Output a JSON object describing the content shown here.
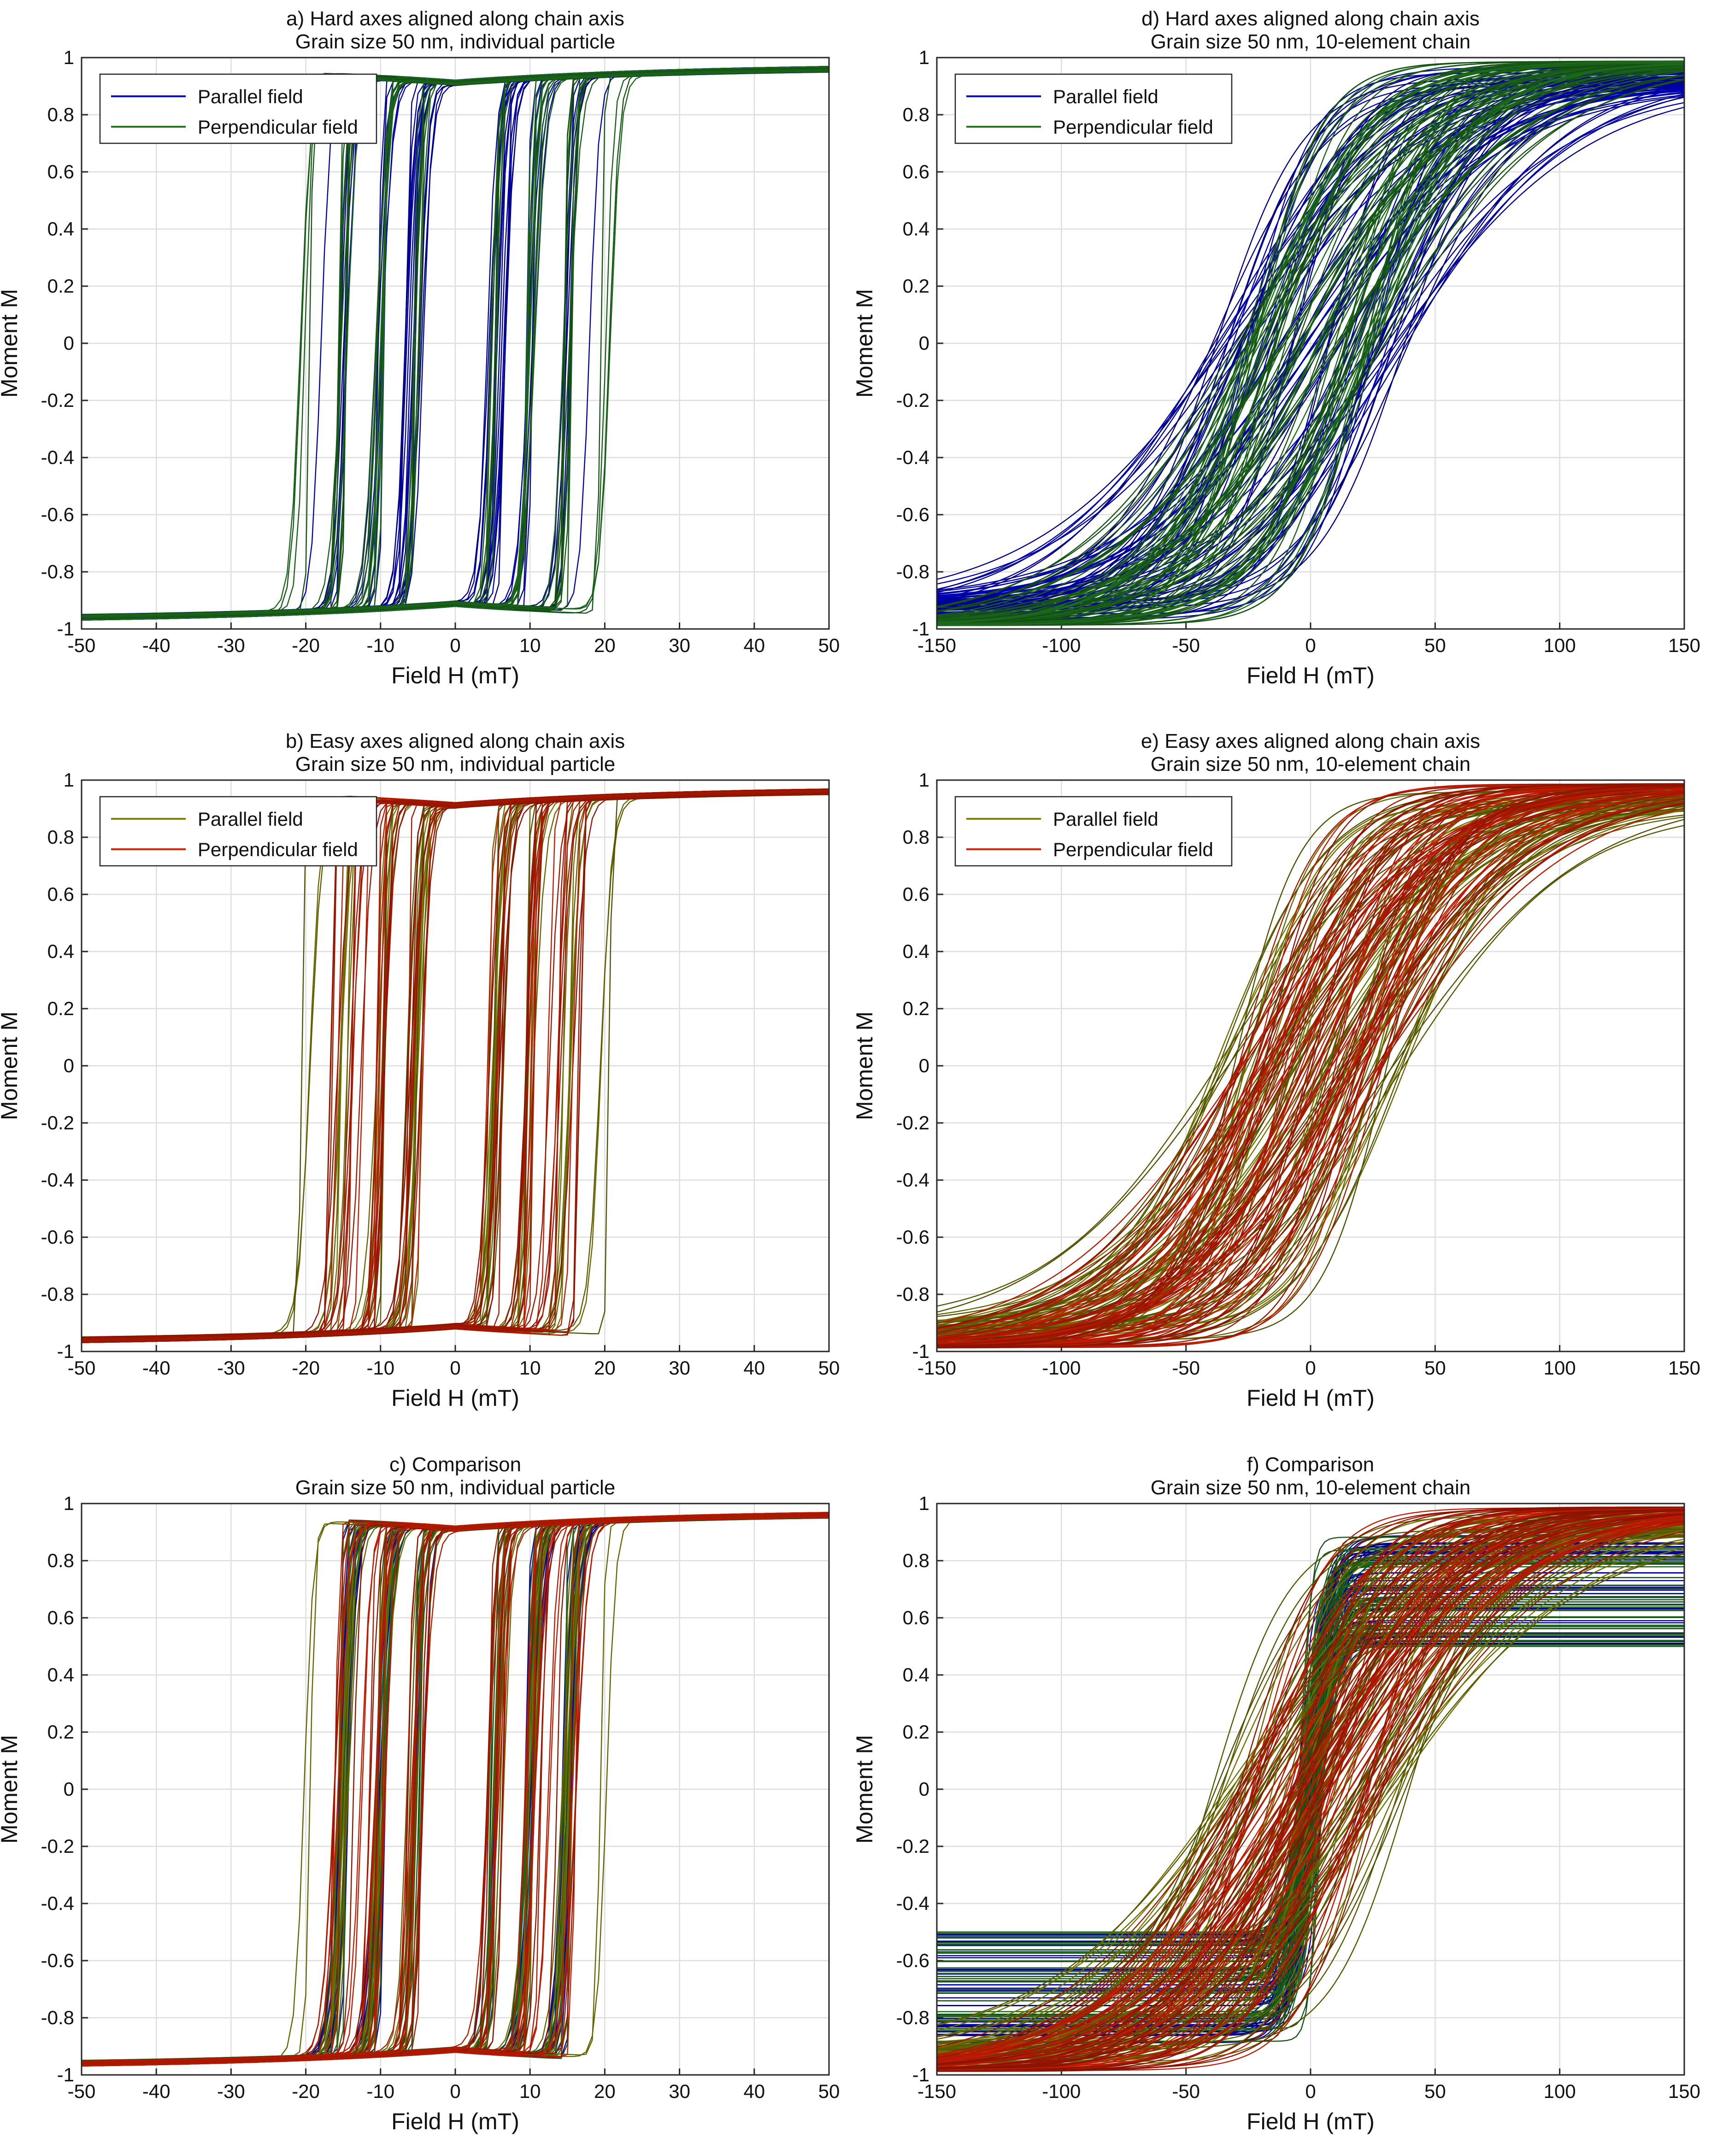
{
  "figure": {
    "panels": [
      {
        "id": "a",
        "title_line1": "a) Hard axes aligned along chain axis",
        "title_line2": "Grain size 50 nm, individual particle",
        "xlabel": "Field H (mT)",
        "ylabel": "Moment M",
        "legend": [
          {
            "label": "Parallel field",
            "color": "#0000cc"
          },
          {
            "label": "Perpendicular field",
            "color": "#1f7a1f"
          }
        ]
      },
      {
        "id": "b",
        "title_line1": "b) Easy axes aligned along chain axis",
        "title_line2": "Grain size 50 nm, individual particle",
        "xlabel": "Field H (mT)",
        "ylabel": "Moment M",
        "legend": [
          {
            "label": "Parallel field",
            "color": "#808000"
          },
          {
            "label": "Perpendicular field",
            "color": "#e02000"
          }
        ]
      },
      {
        "id": "c",
        "title_line1": "c) Comparison",
        "title_line2": "Grain size 50 nm, individual particle",
        "xlabel": "Field H (mT)",
        "ylabel": "Moment M",
        "legend": []
      },
      {
        "id": "d",
        "title_line1": "d) Hard axes aligned along chain axis",
        "title_line2": "Grain size 50 nm, 10-element chain",
        "xlabel": "Field H (mT)",
        "ylabel": "Moment M",
        "legend": [
          {
            "label": "Parallel field",
            "color": "#0000cc"
          },
          {
            "label": "Perpendicular field",
            "color": "#1f7a1f"
          }
        ]
      },
      {
        "id": "e",
        "title_line1": "e) Easy axes aligned along chain axis",
        "title_line2": "Grain size 50 nm, 10-element chain",
        "xlabel": "Field H (mT)",
        "ylabel": "Moment M",
        "legend": [
          {
            "label": "Parallel field",
            "color": "#808000"
          },
          {
            "label": "Perpendicular field",
            "color": "#e02000"
          }
        ]
      },
      {
        "id": "f",
        "title_line1": "f) Comparison",
        "title_line2": "Grain size 50 nm, 10-element chain",
        "xlabel": "Field H (mT)",
        "ylabel": "Moment M",
        "legend": []
      }
    ]
  },
  "chart_data": [
    {
      "id": "a",
      "type": "line",
      "title": "a) Hard axes aligned along chain axis / Grain size 50 nm, individual particle",
      "xlabel": "Field H (mT)",
      "ylabel": "Moment M",
      "xlim": [
        -50,
        50
      ],
      "ylim": [
        -1,
        1
      ],
      "xticks": [
        "-50",
        "-40",
        "-30",
        "-20",
        "-10",
        "0",
        "10",
        "20",
        "30",
        "40",
        "50"
      ],
      "yticks": [
        "-1",
        "-0.8",
        "-0.6",
        "-0.4",
        "-0.2",
        "0",
        "0.2",
        "0.4",
        "0.6",
        "0.8",
        "1"
      ],
      "grid": true,
      "legend_position": "top-left",
      "series": [
        {
          "name": "Parallel field",
          "color": "#0000cc",
          "style": "hysteresis",
          "coercive_fields_mT": [
            -18,
            -15,
            -10,
            -6,
            5,
            10,
            15
          ],
          "saturation_M": 0.98
        },
        {
          "name": "Perpendicular field",
          "color": "#1f7a1f",
          "style": "hysteresis",
          "coercive_fields_mT": [
            -20,
            -15,
            -10,
            -5,
            5,
            10,
            15
          ],
          "saturation_M": 0.98
        }
      ]
    },
    {
      "id": "b",
      "type": "line",
      "title": "b) Easy axes aligned along chain axis / Grain size 50 nm, individual particle",
      "xlabel": "Field H (mT)",
      "ylabel": "Moment M",
      "xlim": [
        -50,
        50
      ],
      "ylim": [
        -1,
        1
      ],
      "xticks": [
        "-50",
        "-40",
        "-30",
        "-20",
        "-10",
        "0",
        "10",
        "20",
        "30",
        "40",
        "50"
      ],
      "yticks": [
        "-1",
        "-0.8",
        "-0.6",
        "-0.4",
        "-0.2",
        "0",
        "0.2",
        "0.4",
        "0.6",
        "0.8",
        "1"
      ],
      "grid": true,
      "legend_position": "top-left",
      "series": [
        {
          "name": "Parallel field",
          "color": "#808000",
          "style": "hysteresis",
          "coercive_fields_mT": [
            -20,
            -15,
            -10,
            -6,
            5,
            10,
            15
          ],
          "saturation_M": 0.98
        },
        {
          "name": "Perpendicular field",
          "color": "#e02000",
          "style": "hysteresis",
          "coercive_fields_mT": [
            -16,
            -14,
            -10,
            -6,
            5,
            10,
            12
          ],
          "saturation_M": 0.98
        }
      ]
    },
    {
      "id": "c",
      "type": "line",
      "title": "c) Comparison / Grain size 50 nm, individual particle",
      "xlabel": "Field H (mT)",
      "ylabel": "Moment M",
      "xlim": [
        -50,
        50
      ],
      "ylim": [
        -1,
        1
      ],
      "xticks": [
        "-50",
        "-40",
        "-30",
        "-20",
        "-10",
        "0",
        "10",
        "20",
        "30",
        "40",
        "50"
      ],
      "yticks": [
        "-1",
        "-0.8",
        "-0.6",
        "-0.4",
        "-0.2",
        "0",
        "0.2",
        "0.4",
        "0.6",
        "0.8",
        "1"
      ],
      "grid": true,
      "series": [
        {
          "name": "",
          "color": "#0000cc",
          "style": "hysteresis",
          "coercive_fields_mT": [
            -15,
            -10,
            5,
            10,
            15
          ],
          "saturation_M": 0.98
        },
        {
          "name": "",
          "color": "#1f7a1f",
          "style": "hysteresis",
          "coercive_fields_mT": [
            -15,
            -10,
            5,
            10
          ],
          "saturation_M": 0.98
        },
        {
          "name": "",
          "color": "#808000",
          "style": "hysteresis",
          "coercive_fields_mT": [
            -20,
            -15,
            -10,
            -6,
            5,
            10,
            15
          ],
          "saturation_M": 0.98
        },
        {
          "name": "",
          "color": "#e02000",
          "style": "hysteresis",
          "coercive_fields_mT": [
            -16,
            -14,
            -10,
            -6,
            5,
            10,
            12
          ],
          "saturation_M": 0.98
        }
      ]
    },
    {
      "id": "d",
      "type": "line",
      "title": "d) Hard axes aligned along chain axis / Grain size 50 nm, 10-element chain",
      "xlabel": "Field H (mT)",
      "ylabel": "Moment M",
      "xlim": [
        -150,
        150
      ],
      "ylim": [
        -1,
        1
      ],
      "xticks": [
        "-150",
        "-100",
        "-50",
        "0",
        "50",
        "100",
        "150"
      ],
      "yticks": [
        "-1",
        "-0.8",
        "-0.6",
        "-0.4",
        "-0.2",
        "0",
        "0.2",
        "0.4",
        "0.6",
        "0.8",
        "1"
      ],
      "grid": true,
      "legend_position": "top-left",
      "series": [
        {
          "name": "Parallel field",
          "color": "#0000cc",
          "style": "sheared-loop",
          "coercive_range_mT": [
            0,
            40
          ],
          "saturation_M": 0.9
        },
        {
          "name": "Perpendicular field",
          "color": "#1f7a1f",
          "style": "sheared-loop",
          "coercive_range_mT": [
            0,
            30
          ],
          "saturation_M": 0.98
        }
      ]
    },
    {
      "id": "e",
      "type": "line",
      "title": "e) Easy axes aligned along chain axis / Grain size 50 nm, 10-element chain",
      "xlabel": "Field H (mT)",
      "ylabel": "Moment M",
      "xlim": [
        -150,
        150
      ],
      "ylim": [
        -1,
        1
      ],
      "xticks": [
        "-150",
        "-100",
        "-50",
        "0",
        "50",
        "100",
        "150"
      ],
      "yticks": [
        "-1",
        "-0.8",
        "-0.6",
        "-0.4",
        "-0.2",
        "0",
        "0.2",
        "0.4",
        "0.6",
        "0.8",
        "1"
      ],
      "grid": true,
      "legend_position": "top-left",
      "series": [
        {
          "name": "Parallel field",
          "color": "#808000",
          "style": "sheared-loop",
          "coercive_range_mT": [
            0,
            40
          ],
          "saturation_M": 0.9
        },
        {
          "name": "Perpendicular field",
          "color": "#e02000",
          "style": "sheared-loop",
          "coercive_range_mT": [
            0,
            30
          ],
          "saturation_M": 0.98
        }
      ]
    },
    {
      "id": "f",
      "type": "line",
      "title": "f) Comparison / Grain size 50 nm, 10-element chain",
      "xlabel": "Field H (mT)",
      "ylabel": "Moment M",
      "xlim": [
        -150,
        150
      ],
      "ylim": [
        -1,
        1
      ],
      "xticks": [
        "-150",
        "-100",
        "-50",
        "0",
        "50",
        "100",
        "150"
      ],
      "yticks": [
        "-1",
        "-0.8",
        "-0.6",
        "-0.4",
        "-0.2",
        "0",
        "0.2",
        "0.4",
        "0.6",
        "0.8",
        "1"
      ],
      "grid": true,
      "series": [
        {
          "name": "",
          "color": "#0000cc",
          "style": "sheared-loop",
          "coercive_range_mT": [
            0,
            5
          ],
          "saturation_M": 0.5
        },
        {
          "name": "",
          "color": "#1f7a1f",
          "style": "sheared-loop",
          "coercive_range_mT": [
            0,
            5
          ],
          "saturation_M": 0.5
        },
        {
          "name": "",
          "color": "#808000",
          "style": "sheared-loop",
          "coercive_range_mT": [
            0,
            40
          ],
          "saturation_M": 0.9
        },
        {
          "name": "",
          "color": "#e02000",
          "style": "sheared-loop",
          "coercive_range_mT": [
            0,
            30
          ],
          "saturation_M": 0.98
        }
      ]
    }
  ]
}
